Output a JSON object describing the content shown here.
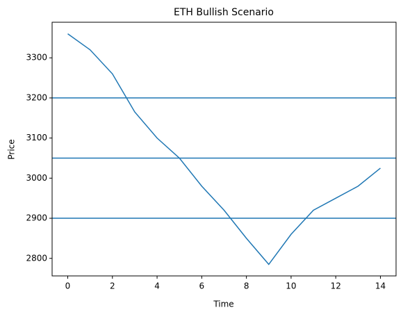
{
  "chart_data": {
    "type": "line",
    "title": "ETH Bullish Scenario",
    "x_label": "Time",
    "y_label": "Price",
    "x": [
      0,
      1,
      2,
      3,
      4,
      5,
      6,
      7,
      8,
      9,
      10,
      11,
      12,
      13,
      14
    ],
    "series": [
      {
        "color": "#1f77b4",
        "values": [
          3360,
          3320,
          3260,
          3165,
          3100,
          3050,
          2980,
          2920,
          2850,
          2785,
          2860,
          2920,
          2950,
          2980,
          3025
        ]
      }
    ],
    "hlines": [
      3200,
      3050,
      2900
    ],
    "hline_color": "#1f77b4",
    "xlim": [
      -0.7,
      14.7
    ],
    "xticks": [
      0,
      2,
      4,
      6,
      8,
      10,
      12,
      14
    ],
    "ylim": [
      2756.25,
      3388.75
    ],
    "yticks": [
      2800,
      2900,
      3000,
      3100,
      3200,
      3300
    ]
  }
}
